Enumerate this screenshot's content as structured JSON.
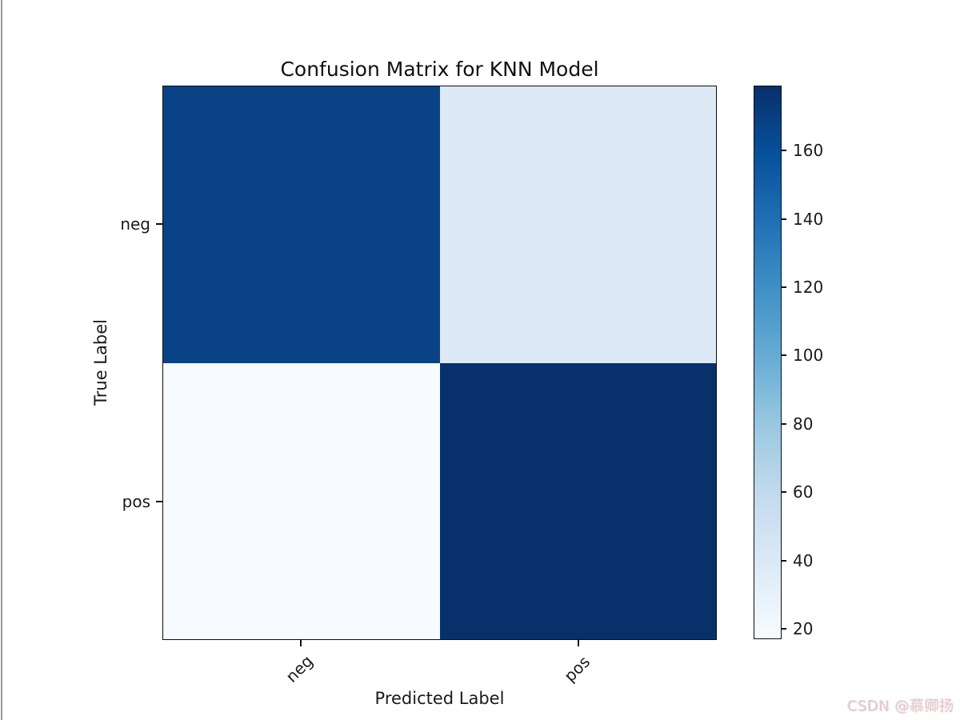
{
  "page": {
    "background": "#ffffff",
    "left_edge_line_color": "#9a9a9a"
  },
  "watermark": {
    "text": "CSDN @慕卿扬",
    "color": "#e6c7cb"
  },
  "chart_data": {
    "type": "heatmap",
    "title": "Confusion Matrix for KNN Model",
    "xlabel": "Predicted Label",
    "ylabel": "True Label",
    "x_categories": [
      "neg",
      "pos"
    ],
    "y_categories": [
      "neg",
      "pos"
    ],
    "values": [
      [
        167,
        40
      ],
      [
        17,
        179
      ]
    ],
    "vmin": 17,
    "vmax": 179,
    "colormap": "Blues",
    "cell_colors": [
      [
        "#0a4286",
        "#dde9f5"
      ],
      [
        "#f7fbff",
        "#08306b"
      ]
    ],
    "colorbar_ticks": [
      20,
      40,
      60,
      80,
      100,
      120,
      140,
      160
    ],
    "colorbar_gradient": [
      "#f7fbff",
      "#deebf7",
      "#c6dbef",
      "#9ecae1",
      "#6baed6",
      "#4292c6",
      "#2171b5",
      "#08519c",
      "#08306b"
    ],
    "x_tick_rotation_deg": 45,
    "legend": "colorbar-right",
    "grid": false
  }
}
